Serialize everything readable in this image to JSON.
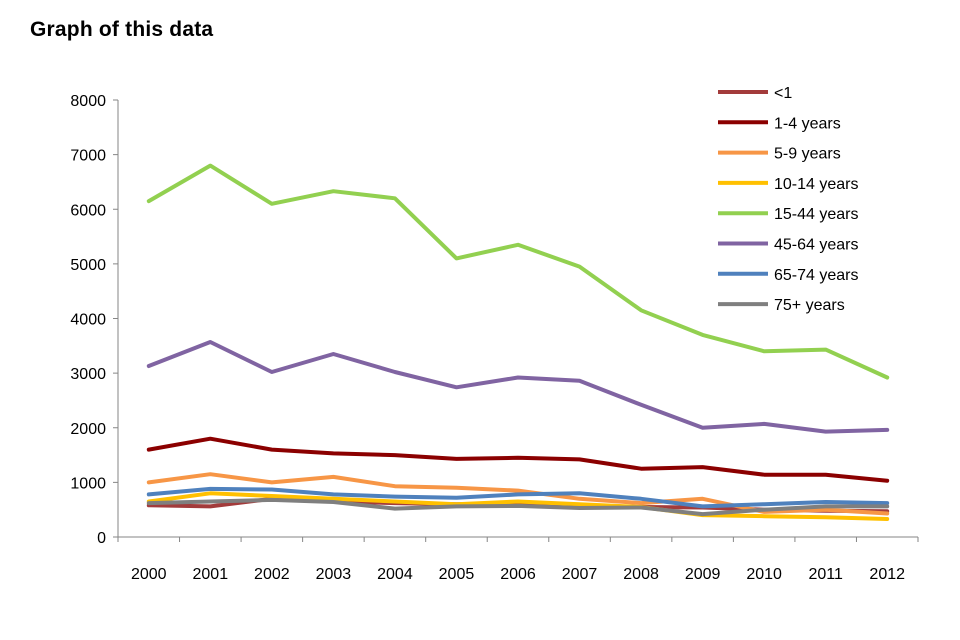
{
  "page": {
    "title": "Graph of this data"
  },
  "chart_data": {
    "type": "line",
    "title": "Graph of this data",
    "xlabel": "",
    "ylabel": "",
    "x": [
      "2000",
      "2001",
      "2002",
      "2003",
      "2004",
      "2005",
      "2006",
      "2007",
      "2008",
      "2009",
      "2010",
      "2011",
      "2012"
    ],
    "ylim": [
      0,
      8000
    ],
    "yticks": [
      0,
      1000,
      2000,
      3000,
      4000,
      5000,
      6000,
      7000,
      8000
    ],
    "grid": false,
    "legend_position": "top-right",
    "series": [
      {
        "name": "<1",
        "color": "#A33B3B",
        "values": [
          580,
          560,
          700,
          650,
          620,
          600,
          620,
          580,
          550,
          540,
          500,
          480,
          470
        ]
      },
      {
        "name": "1-4 years",
        "color": "#8B0000",
        "values": [
          1600,
          1800,
          1600,
          1530,
          1500,
          1430,
          1450,
          1420,
          1250,
          1280,
          1140,
          1140,
          1030
        ]
      },
      {
        "name": "5-9 years",
        "color": "#F79646",
        "values": [
          1000,
          1150,
          1000,
          1100,
          930,
          900,
          850,
          700,
          620,
          700,
          460,
          500,
          430
        ]
      },
      {
        "name": "10-14 years",
        "color": "#FFC000",
        "values": [
          650,
          800,
          750,
          700,
          650,
          600,
          650,
          600,
          550,
          400,
          380,
          360,
          330
        ]
      },
      {
        "name": "15-44 years",
        "color": "#92D050",
        "values": [
          6150,
          6800,
          6100,
          6330,
          6200,
          5100,
          5350,
          4950,
          4150,
          3700,
          3400,
          3430,
          2920
        ]
      },
      {
        "name": "45-64 years",
        "color": "#8064A2",
        "values": [
          3130,
          3570,
          3020,
          3350,
          3020,
          2740,
          2920,
          2860,
          2420,
          2000,
          2070,
          1930,
          1960
        ]
      },
      {
        "name": "65-74 years",
        "color": "#4F81BD",
        "values": [
          780,
          880,
          870,
          780,
          740,
          720,
          780,
          800,
          700,
          560,
          600,
          640,
          620
        ]
      },
      {
        "name": "75+ years",
        "color": "#7F7F7F",
        "values": [
          620,
          650,
          680,
          640,
          520,
          560,
          570,
          530,
          540,
          420,
          500,
          560,
          560
        ]
      }
    ]
  }
}
